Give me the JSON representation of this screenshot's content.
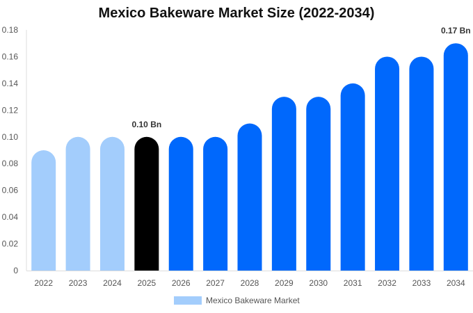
{
  "chart_data": {
    "type": "bar",
    "title": "Mexico Bakeware Market Size (2022-2034)",
    "xlabel": "",
    "ylabel": "",
    "categories": [
      "2022",
      "2023",
      "2024",
      "2025",
      "2026",
      "2027",
      "2028",
      "2029",
      "2030",
      "2031",
      "2032",
      "2033",
      "2034"
    ],
    "series": [
      {
        "name": "Mexico Bakeware Market",
        "values": [
          0.09,
          0.1,
          0.1,
          0.1,
          0.1,
          0.1,
          0.11,
          0.13,
          0.13,
          0.14,
          0.16,
          0.16,
          0.17
        ]
      }
    ],
    "ylim": [
      0,
      0.18
    ],
    "yticks": [
      "0",
      "0.02",
      "0.04",
      "0.06",
      "0.08",
      "0.10",
      "0.12",
      "0.14",
      "0.16",
      "0.18"
    ],
    "data_labels": [
      {
        "index": 3,
        "text": "0.10 Bn"
      },
      {
        "index": 12,
        "text": "0.17 Bn"
      }
    ],
    "bar_colors": {
      "historic": "#a3cdfc",
      "base_year": "#000000",
      "forecast": "#0068fc"
    },
    "bar_color_groups": [
      "historic",
      "historic",
      "historic",
      "base_year",
      "forecast",
      "forecast",
      "forecast",
      "forecast",
      "forecast",
      "forecast",
      "forecast",
      "forecast",
      "forecast"
    ],
    "grid": false,
    "legend_position": "bottom-center"
  }
}
